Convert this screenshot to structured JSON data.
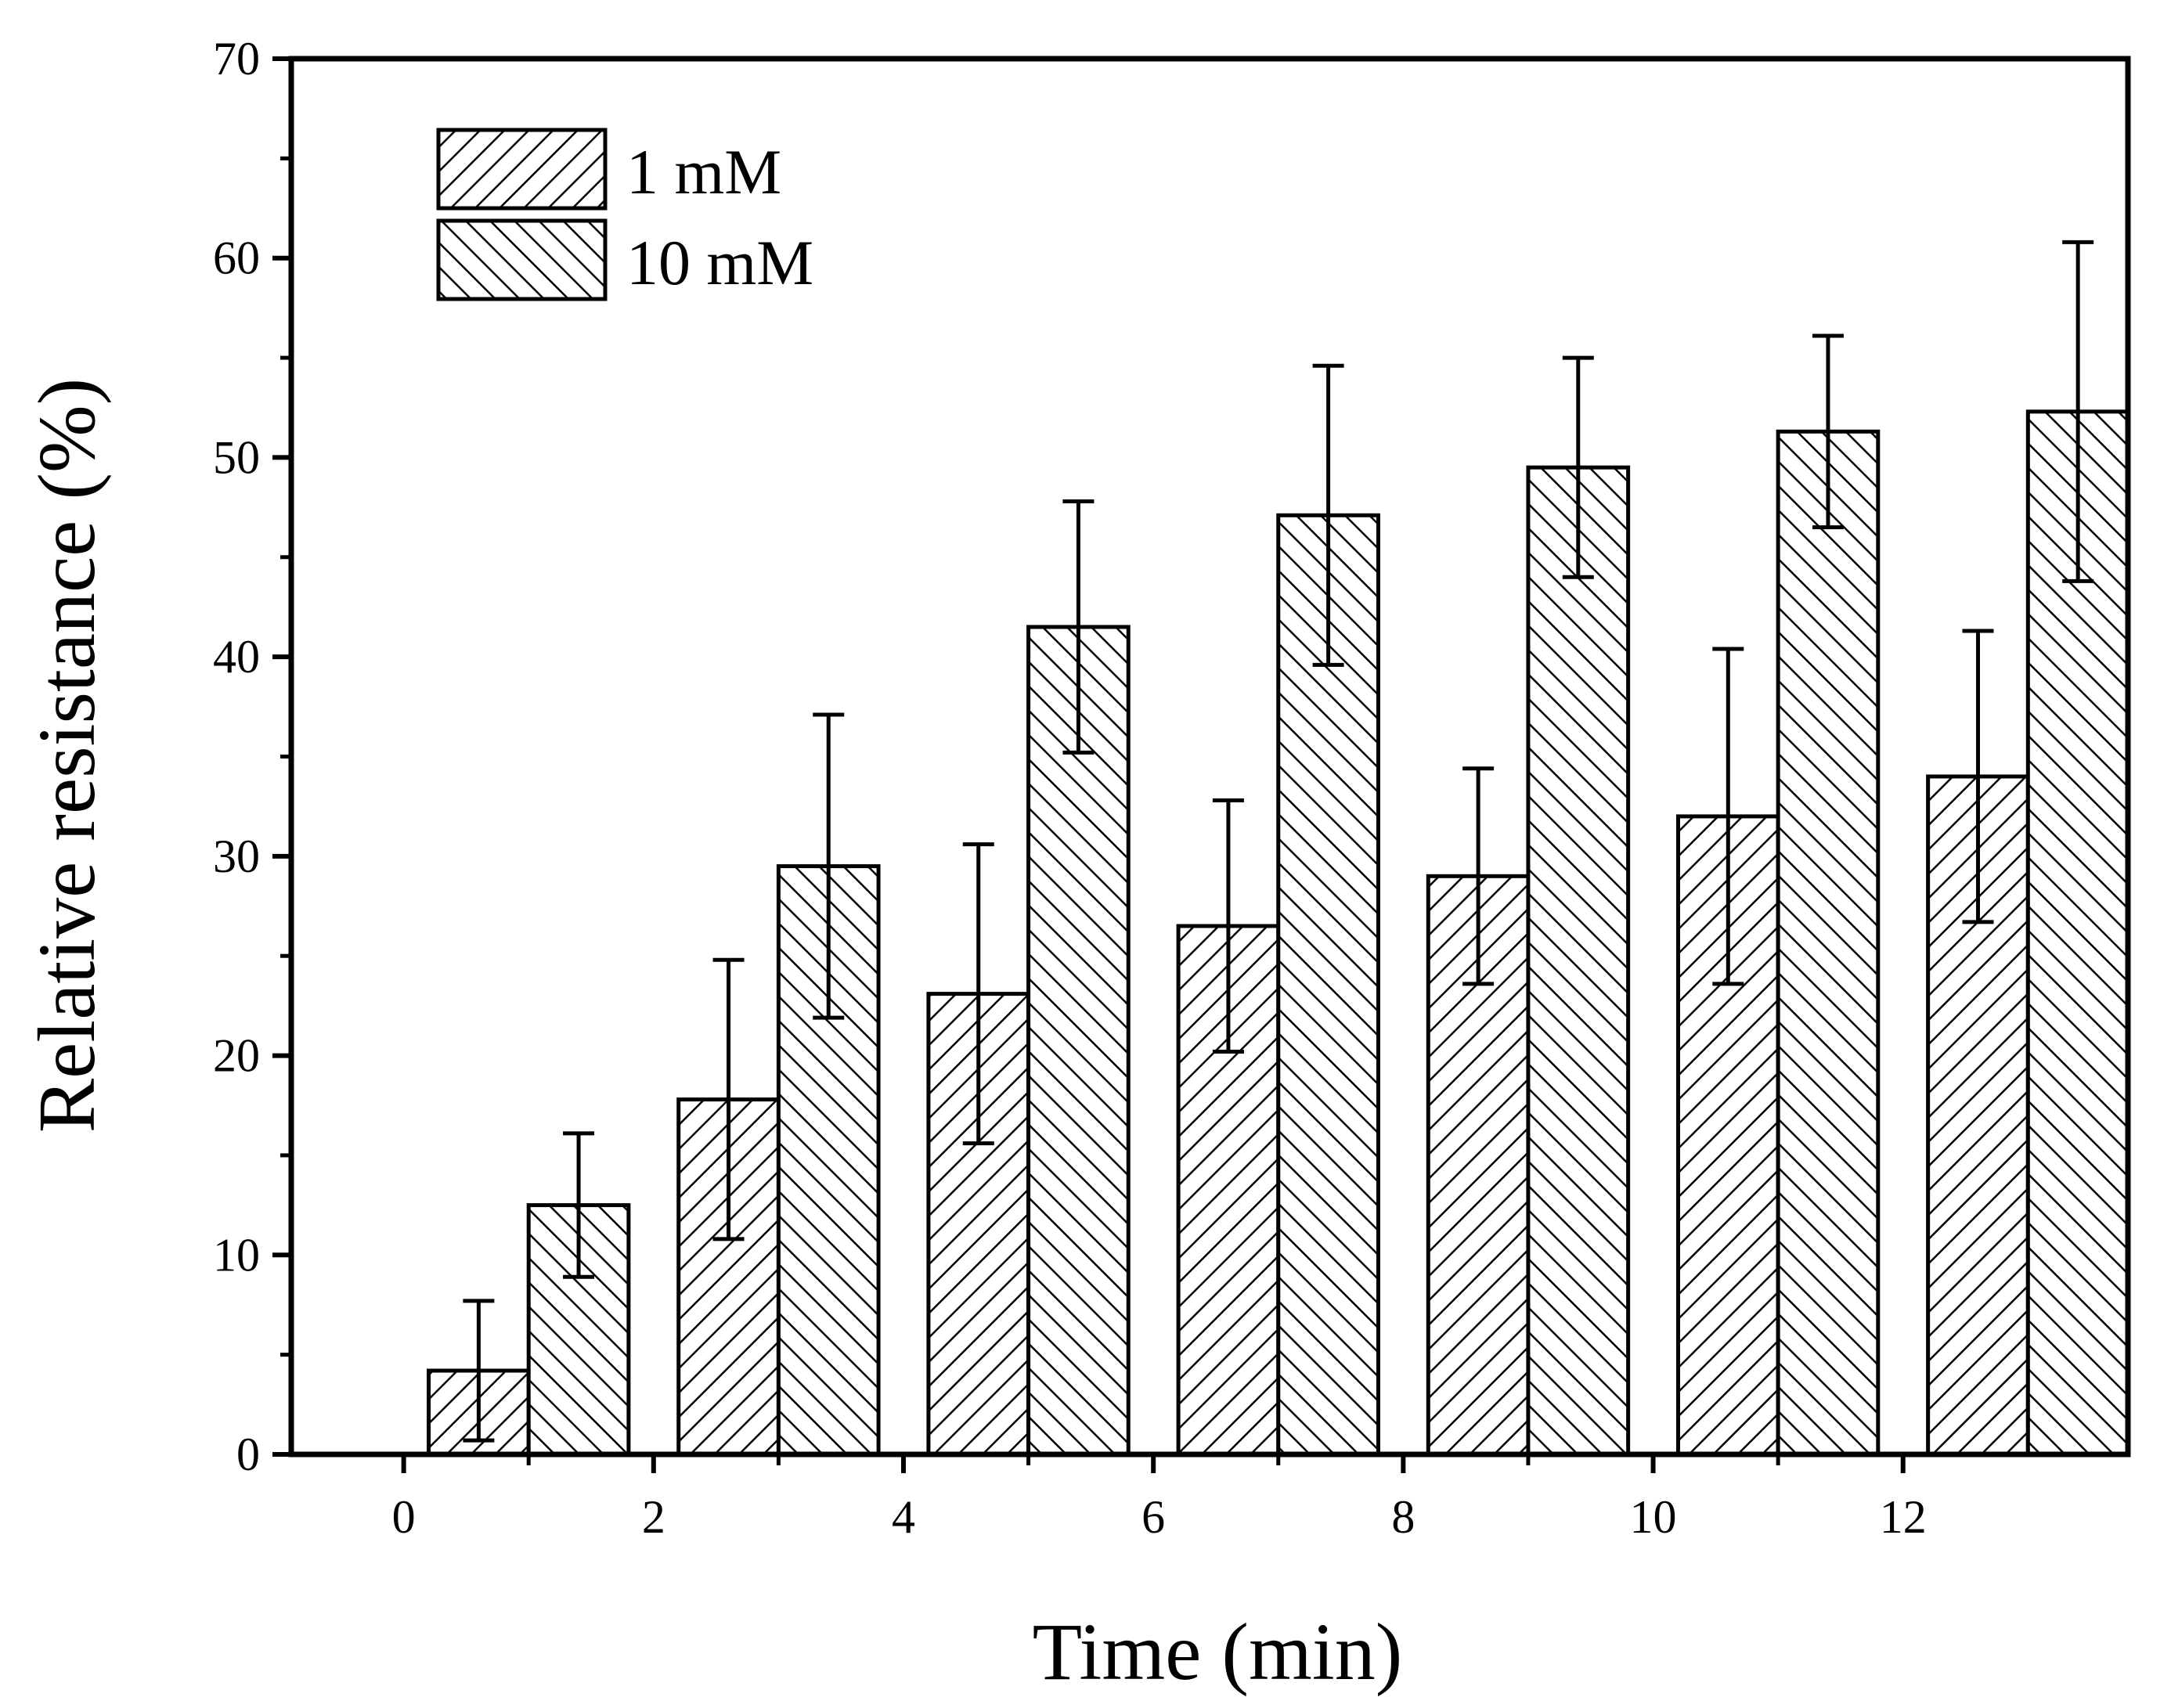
{
  "chart_data": {
    "type": "bar",
    "title": "",
    "xlabel": "Time (min)",
    "ylabel": "Relative resistance (%)",
    "xlim": [
      -0.9,
      13.8
    ],
    "ylim": [
      0,
      70
    ],
    "x": [
      1,
      3,
      5,
      7,
      9,
      11,
      13
    ],
    "xticks": [
      "0",
      "2",
      "4",
      "6",
      "8",
      "10",
      "12"
    ],
    "yticks": [
      "0",
      "10",
      "20",
      "30",
      "40",
      "50",
      "60",
      "70"
    ],
    "legend_position": "top-left",
    "grid": false,
    "series": [
      {
        "name": "1 mM",
        "hatch": "forward-diagonal",
        "values": [
          4.2,
          17.8,
          23.1,
          26.5,
          29.0,
          32.0,
          34.0
        ],
        "errors": [
          3.5,
          7.0,
          7.5,
          6.3,
          5.4,
          8.4,
          7.3
        ]
      },
      {
        "name": "10 mM",
        "hatch": "backward-diagonal",
        "values": [
          12.5,
          29.5,
          41.5,
          47.1,
          49.5,
          51.3,
          52.3
        ],
        "errors": [
          3.6,
          7.6,
          6.3,
          7.5,
          5.5,
          4.8,
          8.5
        ]
      }
    ],
    "colors": {
      "axis": "#000000",
      "bar_fill": "#ffffff",
      "hatch": "#000000"
    }
  }
}
